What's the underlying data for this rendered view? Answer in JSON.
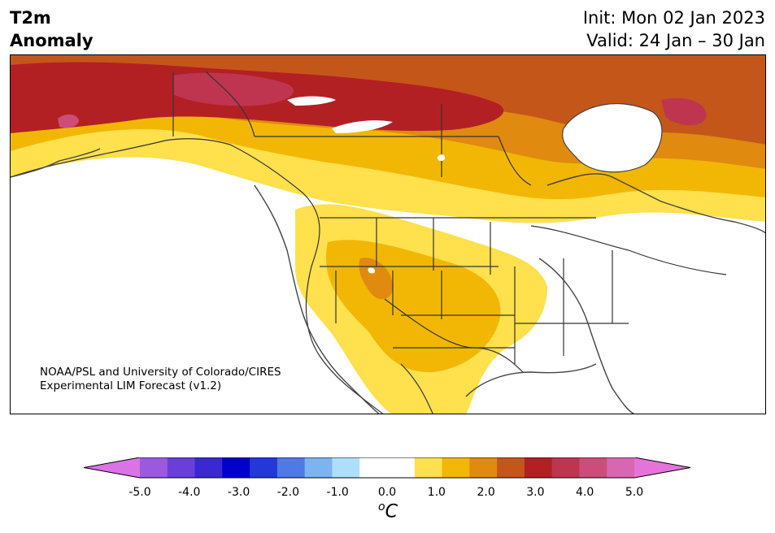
{
  "title": {
    "line1": "T2m",
    "line2": "Anomaly"
  },
  "dates": {
    "init": "Init: Mon 02 Jan 2023",
    "valid": "Valid: 24 Jan – 30 Jan"
  },
  "credit": {
    "line1": "NOAA/PSL and University of Colorado/CIRES",
    "line2": "Experimental LIM Forecast (v1.2)"
  },
  "colorbar": {
    "colors": [
      "#d973e6",
      "#9b59e0",
      "#6a3ed9",
      "#3a28d0",
      "#0000cc",
      "#2338d9",
      "#4f79e6",
      "#7db3f0",
      "#aedffa",
      "#ffffff",
      "#ffffff",
      "#ffe04d",
      "#f2b705",
      "#e08a10",
      "#c4561a",
      "#b32024",
      "#bf3550",
      "#cc4d7a",
      "#d966b3",
      "#e673d9"
    ],
    "tick_labels": [
      "-5.0",
      "-4.0",
      "-3.0",
      "-2.0",
      "-1.0",
      "0.0",
      "1.0",
      "2.0",
      "3.0",
      "4.0",
      "5.0"
    ],
    "unit_sup": "o",
    "unit": "C"
  }
}
